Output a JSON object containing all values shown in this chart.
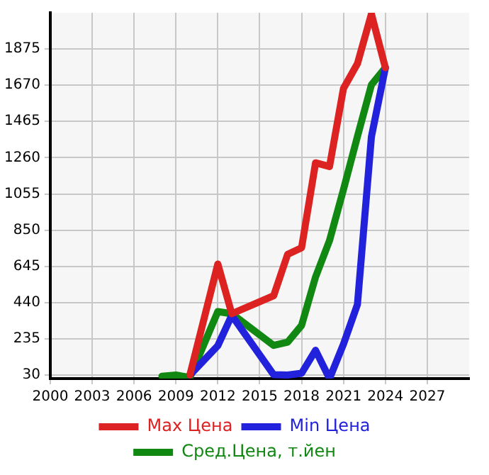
{
  "chart_data": {
    "type": "line",
    "xlim": [
      2000,
      2030
    ],
    "xticks": [
      2000,
      2003,
      2006,
      2009,
      2012,
      2015,
      2018,
      2021,
      2024,
      2027
    ],
    "ylim": [
      10,
      2080
    ],
    "yticks": [
      30,
      235,
      440,
      645,
      850,
      1055,
      1260,
      1465,
      1670,
      1875
    ],
    "grid": true,
    "legend": "bottom",
    "marker": "none",
    "line_style": "solid",
    "series": [
      {
        "name": "Max Цена",
        "color": "#dd2222",
        "x": [
          2010,
          2012,
          2013,
          2016,
          2017,
          2018,
          2019,
          2020,
          2021,
          2022,
          2023,
          2024
        ],
        "values": [
          30,
          658,
          377,
          479,
          713,
          750,
          1231,
          1210,
          1652,
          1792,
          2073,
          1769
        ]
      },
      {
        "name": "Min Цена",
        "color": "#2222dd",
        "x": [
          2010,
          2012,
          2013,
          2016,
          2017,
          2018,
          2019,
          2020,
          2021,
          2022,
          2023,
          2024
        ],
        "values": [
          30,
          196,
          368,
          32,
          30,
          40,
          170,
          10,
          205,
          430,
          1378,
          1769
        ]
      },
      {
        "name": "Сред.Цена, т.йен",
        "color": "#118811",
        "x": [
          2008,
          2009,
          2010,
          2012,
          2013,
          2016,
          2017,
          2018,
          2019,
          2020,
          2021,
          2022,
          2023,
          2024
        ],
        "values": [
          23,
          30,
          16,
          389,
          377,
          198,
          216,
          311,
          585,
          791,
          1080,
          1380,
          1672,
          1769
        ]
      }
    ]
  }
}
